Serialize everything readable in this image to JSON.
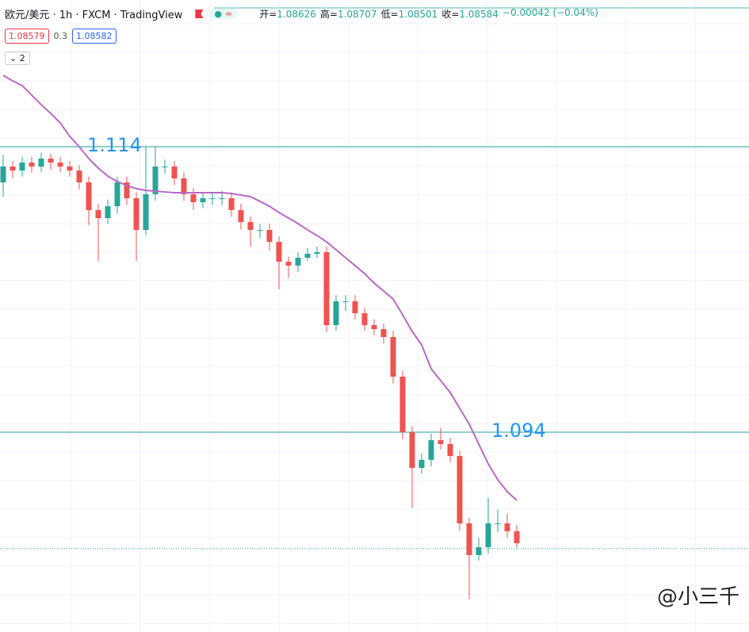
{
  "header": {
    "title": "欧元/美元 · 1h · FXCM · TradingView",
    "ohlc": [
      {
        "label": "开=",
        "value": 1.08626
      },
      {
        "label": "高=",
        "value": 1.08707
      },
      {
        "label": "低=",
        "value": 1.08501
      },
      {
        "label": "收=",
        "value": 1.08584
      }
    ],
    "change": "−0.00042 (−0.04%)"
  },
  "quotes": {
    "bid": "1.08579",
    "spread": "0.3",
    "ask": "1.08582"
  },
  "indicators_count": "2",
  "watermark": "@小三千",
  "chart_data": {
    "type": "candlestick",
    "levels": [
      1.114,
      1.094
    ],
    "open": [
      1.1115,
      1.11261,
      1.11233,
      1.11289,
      1.11261,
      1.11317,
      1.11289,
      1.11261,
      1.11233,
      1.1115,
      1.10956,
      1.109,
      1.10983,
      1.1115,
      1.11039,
      1.10817,
      1.11067,
      1.11261,
      1.11261,
      1.11178,
      1.11067,
      1.11011,
      1.11039,
      1.11039,
      1.11039,
      1.10956,
      1.10872,
      1.10817,
      1.10817,
      1.10733,
      1.10594,
      1.10567,
      1.10622,
      1.1065,
      1.10661,
      1.1015,
      1.10317,
      1.10317,
      1.10233,
      1.1015,
      1.10122,
      1.10067,
      1.09789,
      1.094,
      1.0915,
      1.09206,
      1.09344,
      1.09317,
      1.09233,
      1.08761,
      1.08539,
      1.08594,
      1.08761,
      1.08761,
      1.08706
    ],
    "high": [
      1.1134,
      1.113,
      1.1133,
      1.1133,
      1.1136,
      1.1135,
      1.1133,
      1.113,
      1.1127,
      1.1119,
      1.11,
      1.1103,
      1.1119,
      1.1119,
      1.1108,
      1.114,
      1.114,
      1.1131,
      1.113,
      1.1122,
      1.1111,
      1.1108,
      1.1108,
      1.1109,
      1.1108,
      1.11,
      1.1091,
      1.1086,
      1.1086,
      1.1077,
      1.1063,
      1.1066,
      1.1069,
      1.107,
      1.107,
      1.1036,
      1.1036,
      1.1036,
      1.1027,
      1.1019,
      1.1016,
      1.1011,
      1.0983,
      1.0944,
      1.0925,
      1.0939,
      1.0943,
      1.0936,
      1.0927,
      1.088,
      1.0866,
      1.0894,
      1.0886,
      1.0883,
      1.0875
    ],
    "low": [
      1.1105,
      1.1118,
      1.1119,
      1.1122,
      1.1122,
      1.1124,
      1.1122,
      1.1119,
      1.111,
      1.1085,
      1.106,
      1.1086,
      1.1093,
      1.1099,
      1.106,
      1.1078,
      1.1102,
      1.1121,
      1.1113,
      1.1102,
      1.1096,
      1.1097,
      1.1099,
      1.1099,
      1.1091,
      1.1082,
      1.107,
      1.1076,
      1.1067,
      1.104,
      1.1048,
      1.1052,
      1.106,
      1.1062,
      1.101,
      1.1011,
      1.1025,
      1.1019,
      1.1011,
      1.1008,
      1.1002,
      1.0974,
      1.0935,
      1.0887,
      1.0911,
      1.0916,
      1.0928,
      1.0919,
      1.0871,
      1.0823,
      1.085,
      1.0855,
      1.087,
      1.0866,
      1.0859
    ],
    "close": [
      1.11261,
      1.11233,
      1.11289,
      1.11261,
      1.11317,
      1.11289,
      1.11261,
      1.11233,
      1.1115,
      1.10956,
      1.109,
      1.10983,
      1.1115,
      1.11039,
      1.10817,
      1.11067,
      1.11261,
      1.11261,
      1.11178,
      1.11067,
      1.11011,
      1.11039,
      1.11039,
      1.11039,
      1.10956,
      1.10872,
      1.10817,
      1.10817,
      1.10733,
      1.10594,
      1.10567,
      1.10622,
      1.1065,
      1.10661,
      1.1015,
      1.10317,
      1.10317,
      1.10233,
      1.1015,
      1.10122,
      1.10067,
      1.09789,
      1.094,
      1.0915,
      1.09206,
      1.09344,
      1.09317,
      1.09233,
      1.08761,
      1.08539,
      1.08594,
      1.08761,
      1.08761,
      1.08706,
      1.08622
    ],
    "ma": [
      1.119,
      1.11861,
      1.11828,
      1.11761,
      1.11694,
      1.11633,
      1.11567,
      1.11472,
      1.114,
      1.11317,
      1.1125,
      1.11194,
      1.11156,
      1.11128,
      1.11106,
      1.11094,
      1.11089,
      1.11083,
      1.11078,
      1.11078,
      1.11078,
      1.11078,
      1.11078,
      1.11078,
      1.11072,
      1.11061,
      1.1105,
      1.11017,
      1.10983,
      1.10939,
      1.109,
      1.10861,
      1.10817,
      1.10778,
      1.10733,
      1.10678,
      1.10622,
      1.10567,
      1.10511,
      1.10444,
      1.10389,
      1.10333,
      1.10222,
      1.10106,
      1.10011,
      1.09844,
      1.09761,
      1.09678,
      1.09567,
      1.09456,
      1.09317,
      1.09178,
      1.09067,
      1.08983,
      1.08922
    ],
    "up_color": "#26a69a",
    "down_color": "#ef5350",
    "ma_color": "#ba68c8",
    "level_color": "#2a9d9c",
    "level_label_color": "#2196f3"
  }
}
